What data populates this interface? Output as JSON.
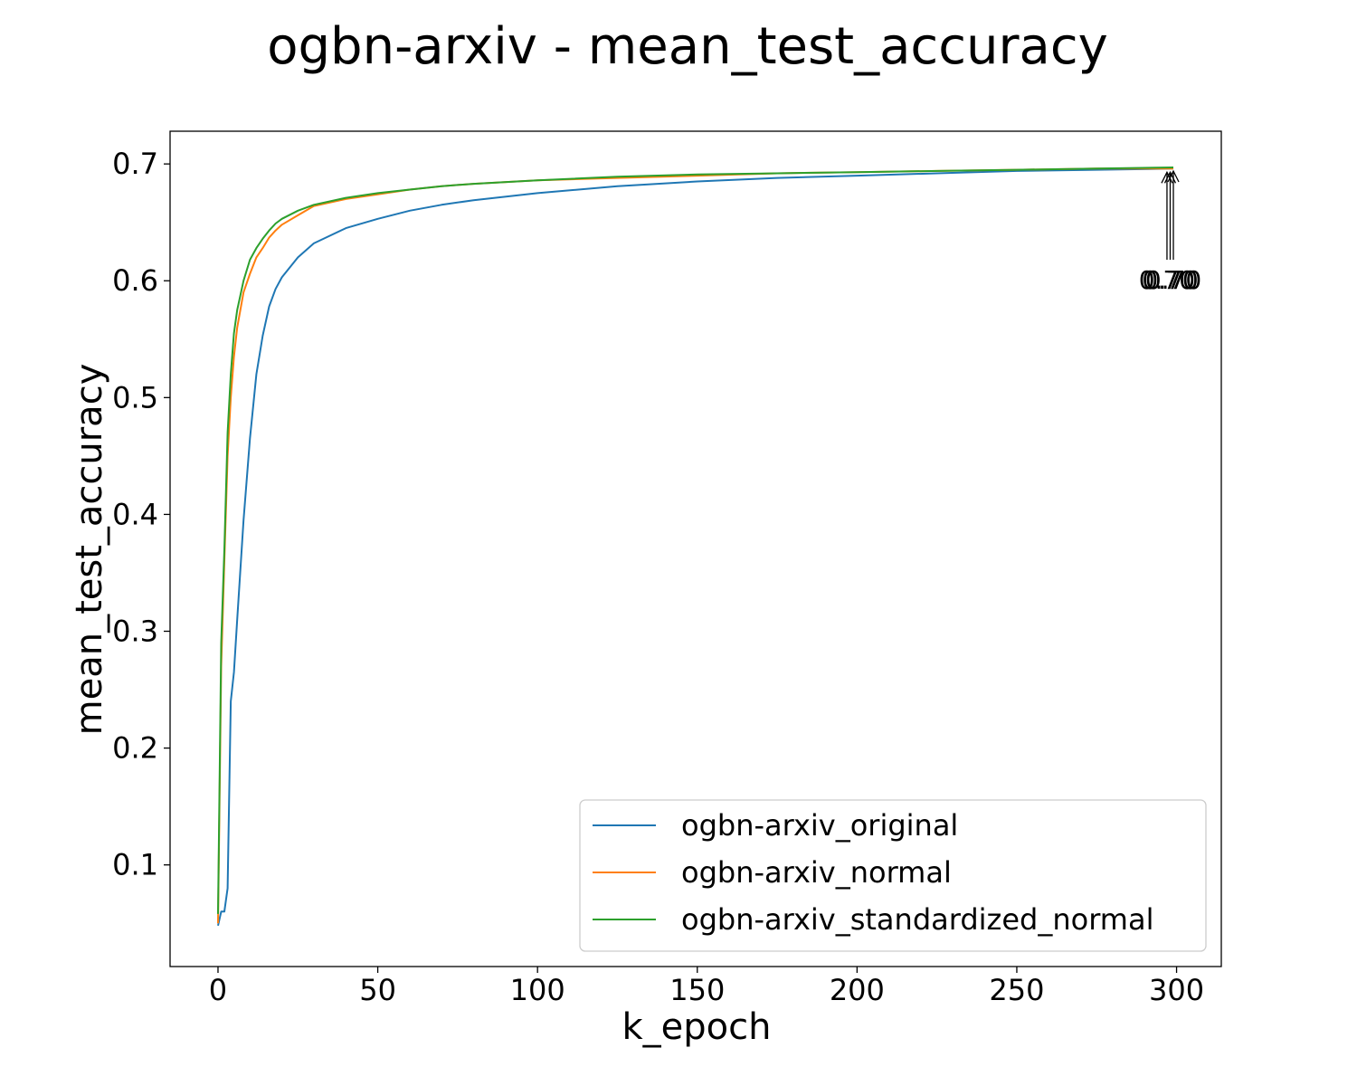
{
  "chart_data": {
    "type": "line",
    "title": "ogbn-arxiv - mean_test_accuracy",
    "xlabel": "k_epoch",
    "ylabel": "mean_test_accuracy",
    "xlim": [
      -15,
      314
    ],
    "ylim": [
      0.013,
      0.728
    ],
    "xticks": [
      0,
      50,
      100,
      150,
      200,
      250,
      300
    ],
    "yticks": [
      0.1,
      0.2,
      0.3,
      0.4,
      0.5,
      0.6,
      0.7
    ],
    "xtick_labels": [
      "0",
      "50",
      "100",
      "150",
      "200",
      "250",
      "300"
    ],
    "ytick_labels": [
      "0.1",
      "0.2",
      "0.3",
      "0.4",
      "0.5",
      "0.6",
      "0.7"
    ],
    "grid": false,
    "legend_position": "lower-right",
    "series": [
      {
        "name": "ogbn-arxiv_original",
        "color": "#1f77b4",
        "x": [
          0,
          1,
          2,
          3,
          4,
          5,
          6,
          8,
          10,
          12,
          14,
          16,
          18,
          20,
          25,
          30,
          40,
          50,
          60,
          70,
          80,
          100,
          125,
          150,
          175,
          200,
          225,
          250,
          275,
          299
        ],
        "y": [
          0.048,
          0.06,
          0.06,
          0.08,
          0.24,
          0.265,
          0.31,
          0.395,
          0.465,
          0.52,
          0.553,
          0.578,
          0.593,
          0.603,
          0.62,
          0.632,
          0.645,
          0.653,
          0.66,
          0.665,
          0.669,
          0.675,
          0.681,
          0.685,
          0.688,
          0.69,
          0.692,
          0.694,
          0.695,
          0.696
        ]
      },
      {
        "name": "ogbn-arxiv_normal",
        "color": "#ff7f0e",
        "x": [
          0,
          1,
          2,
          3,
          4,
          5,
          6,
          8,
          10,
          12,
          14,
          16,
          18,
          20,
          25,
          30,
          40,
          50,
          60,
          70,
          80,
          100,
          125,
          150,
          175,
          200,
          225,
          250,
          275,
          299
        ],
        "y": [
          0.05,
          0.27,
          0.36,
          0.45,
          0.5,
          0.535,
          0.56,
          0.59,
          0.606,
          0.62,
          0.628,
          0.637,
          0.643,
          0.648,
          0.656,
          0.664,
          0.67,
          0.674,
          0.678,
          0.681,
          0.683,
          0.686,
          0.688,
          0.69,
          0.692,
          0.693,
          0.694,
          0.695,
          0.696,
          0.696
        ]
      },
      {
        "name": "ogbn-arxiv_standardized_normal",
        "color": "#2ca02c",
        "x": [
          0,
          1,
          2,
          3,
          4,
          5,
          6,
          8,
          10,
          12,
          14,
          16,
          18,
          20,
          25,
          30,
          40,
          50,
          60,
          70,
          80,
          100,
          125,
          150,
          175,
          200,
          225,
          250,
          275,
          299
        ],
        "y": [
          0.058,
          0.29,
          0.37,
          0.47,
          0.52,
          0.555,
          0.575,
          0.6,
          0.618,
          0.628,
          0.636,
          0.643,
          0.649,
          0.653,
          0.66,
          0.665,
          0.671,
          0.675,
          0.678,
          0.681,
          0.683,
          0.686,
          0.689,
          0.691,
          0.692,
          0.693,
          0.694,
          0.695,
          0.696,
          0.697
        ]
      }
    ],
    "annotations": [
      {
        "text": "0.70",
        "series": "ogbn-arxiv_original",
        "x": 297,
        "y": 0.696
      },
      {
        "text": "0.70",
        "series": "ogbn-arxiv_normal",
        "x": 298,
        "y": 0.696
      },
      {
        "text": "0.70",
        "series": "ogbn-arxiv_standardized_normal",
        "x": 299,
        "y": 0.697
      }
    ]
  }
}
